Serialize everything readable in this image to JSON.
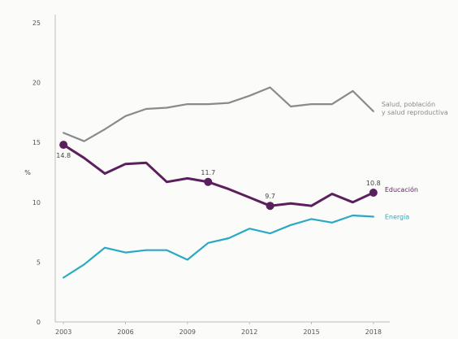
{
  "chart_data": {
    "type": "line",
    "title": "",
    "xlabel": "",
    "ylabel": "%",
    "ylim": [
      0,
      25
    ],
    "y_ticks": [
      0,
      5,
      10,
      15,
      20,
      25
    ],
    "x_ticks": [
      2003,
      2006,
      2009,
      2012,
      2015,
      2018
    ],
    "x_tick_labels": [
      "2003",
      "2006",
      "2009",
      "2012",
      "2015",
      "2018"
    ],
    "xlim": [
      2002.6,
      2018.4
    ],
    "grid": false,
    "colors": {
      "salud": "#8a8a8a",
      "educacion": "#5c1f5e",
      "energia": "#29a9c4",
      "axis": "#bcbcbc"
    },
    "x": [
      2003,
      2004,
      2005,
      2006,
      2007,
      2008,
      2009,
      2010,
      2011,
      2012,
      2013,
      2014,
      2015,
      2016,
      2017,
      2018
    ],
    "series": [
      {
        "key": "salud",
        "label_lines": [
          "Salud, población",
          "y salud reproductiva"
        ],
        "values": [
          15.8,
          15.1,
          16.1,
          17.2,
          17.8,
          17.9,
          18.2,
          18.2,
          18.3,
          18.9,
          19.6,
          18.0,
          18.2,
          18.2,
          19.3,
          17.6
        ]
      },
      {
        "key": "educacion",
        "label_lines": [
          "Educación"
        ],
        "values": [
          14.8,
          13.7,
          12.4,
          13.2,
          13.3,
          11.7,
          12.0,
          11.7,
          11.1,
          10.4,
          9.7,
          9.9,
          9.7,
          10.7,
          10.0,
          10.8
        ],
        "markers": [
          {
            "x": 2003,
            "value": 14.8,
            "label": "14.8"
          },
          {
            "x": 2010,
            "value": 11.7,
            "label": "11.7"
          },
          {
            "x": 2013,
            "value": 9.7,
            "label": "9.7"
          },
          {
            "x": 2018,
            "value": 10.8,
            "label": "10.8"
          }
        ]
      },
      {
        "key": "energia",
        "label_lines": [
          "Energía"
        ],
        "values": [
          3.7,
          4.8,
          6.2,
          5.8,
          6.0,
          6.0,
          5.2,
          6.6,
          7.0,
          7.8,
          7.4,
          8.1,
          8.6,
          8.3,
          8.9,
          8.8
        ]
      }
    ]
  }
}
